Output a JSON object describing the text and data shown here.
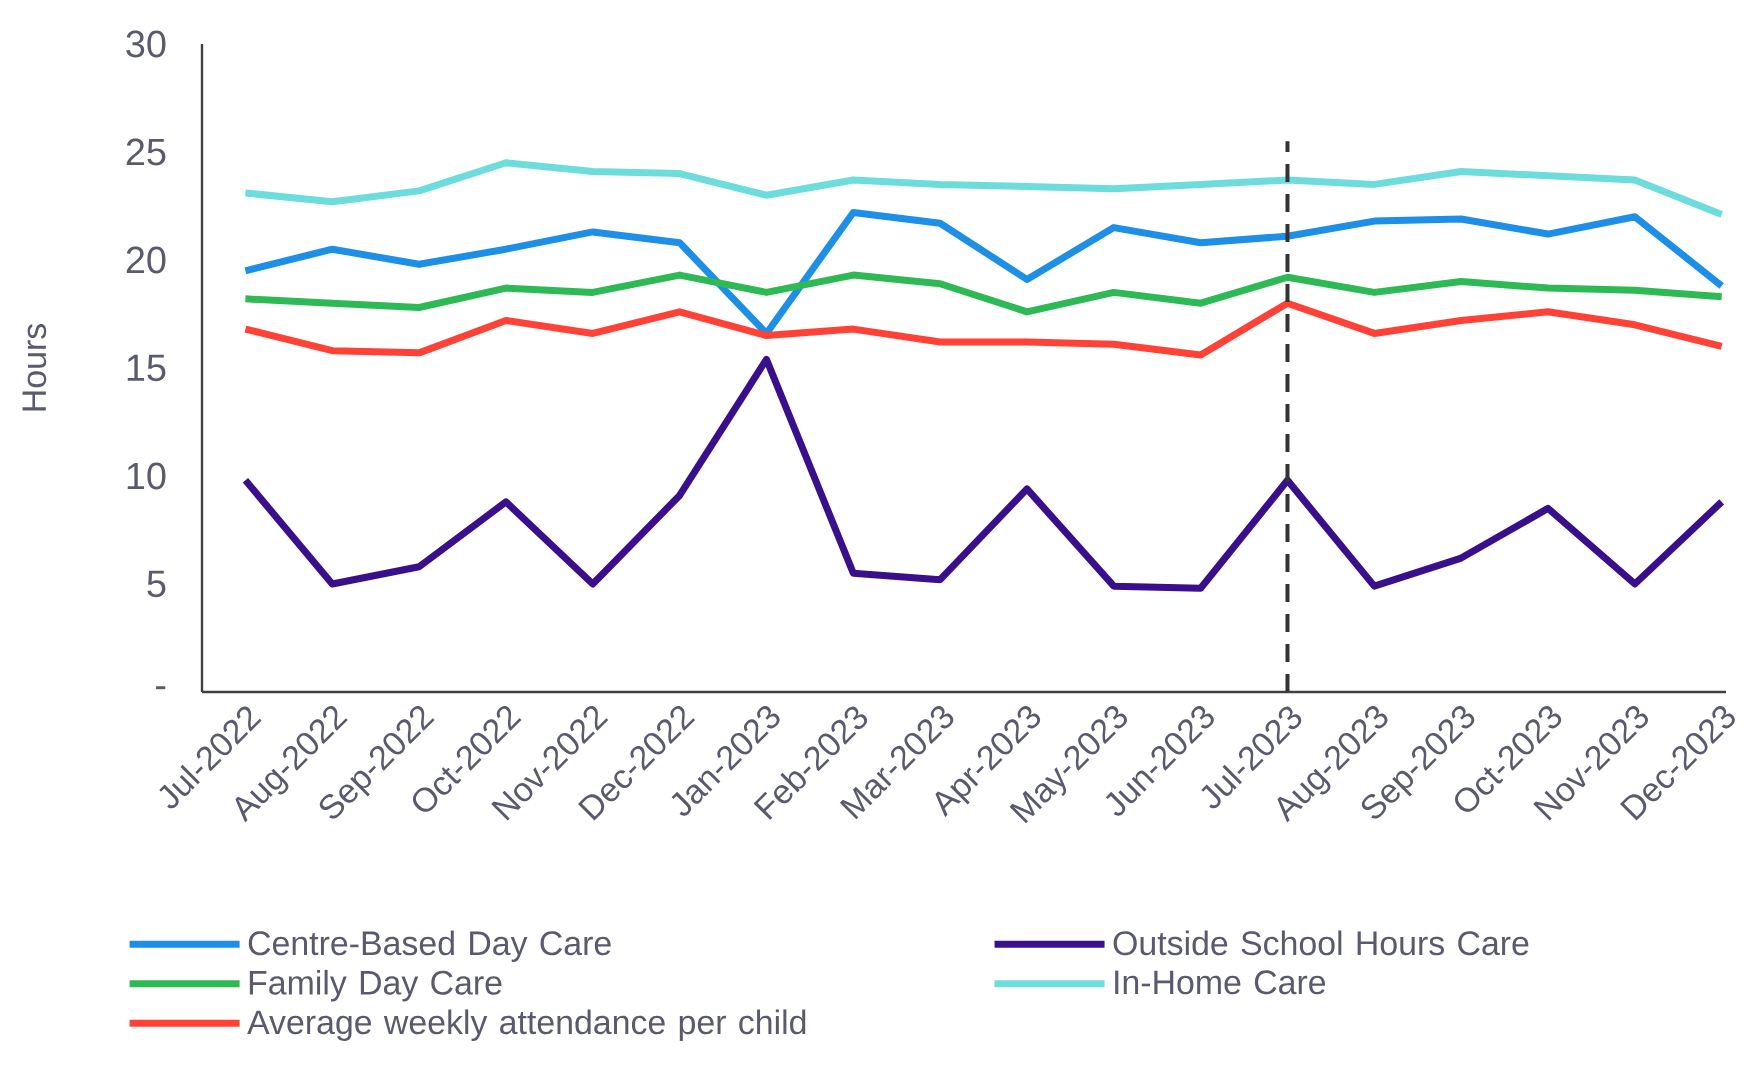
{
  "chart_data": {
    "type": "line",
    "ylabel": "Hours",
    "categories": [
      "Jul-2022",
      "Aug-2022",
      "Sep-2022",
      "Oct-2022",
      "Nov-2022",
      "Dec-2022",
      "Jan-2023",
      "Feb-2023",
      "Mar-2023",
      "Apr-2023",
      "May-2023",
      "Jun-2023",
      "Jul-2023",
      "Aug-2023",
      "Sep-2023",
      "Oct-2023",
      "Nov-2023",
      "Dec-2023"
    ],
    "series": [
      {
        "name": "Centre-Based Day Care",
        "color": "#1e8fe6",
        "values": [
          19.5,
          20.5,
          19.8,
          20.5,
          21.3,
          20.8,
          16.6,
          22.2,
          21.7,
          19.1,
          21.5,
          20.8,
          21.1,
          21.8,
          21.9,
          21.2,
          22.0,
          18.8
        ]
      },
      {
        "name": "Outside School Hours Care",
        "color": "#3a0f8c",
        "values": [
          9.8,
          5.0,
          5.8,
          8.8,
          5.0,
          9.1,
          15.4,
          5.5,
          5.2,
          9.4,
          4.9,
          4.8,
          9.8,
          4.9,
          6.2,
          8.5,
          5.0,
          8.8
        ]
      },
      {
        "name": "Family Day Care",
        "color": "#2dba55",
        "values": [
          18.2,
          18.0,
          17.8,
          18.7,
          18.5,
          19.3,
          18.5,
          19.3,
          18.9,
          17.6,
          18.5,
          18.0,
          19.2,
          18.5,
          19.0,
          18.7,
          18.6,
          18.3
        ]
      },
      {
        "name": "In-Home Care",
        "color": "#6ddcdc",
        "values": [
          23.1,
          22.7,
          23.2,
          24.5,
          24.1,
          24.0,
          23.0,
          23.7,
          23.5,
          23.4,
          23.3,
          23.5,
          23.7,
          23.5,
          24.1,
          23.9,
          23.7,
          22.1
        ]
      },
      {
        "name": "Average weekly attendance per child",
        "color": "#ff4136",
        "values": [
          16.8,
          15.8,
          15.7,
          17.2,
          16.6,
          17.6,
          16.5,
          16.8,
          16.2,
          16.2,
          16.1,
          15.6,
          18.0,
          16.6,
          17.2,
          17.6,
          17.0,
          16.0
        ]
      }
    ],
    "ylim": [
      0,
      30
    ],
    "yticks": [
      {
        "value": 0,
        "label": "-"
      },
      5,
      10,
      15,
      20,
      25,
      30
    ],
    "ref_lines": [
      {
        "axis": "x",
        "value": "Jul-2023",
        "color": "#333333",
        "line_style": "dashed"
      }
    ],
    "grid": false,
    "legend": "bottom",
    "marker": "none",
    "line_style": "solid"
  }
}
